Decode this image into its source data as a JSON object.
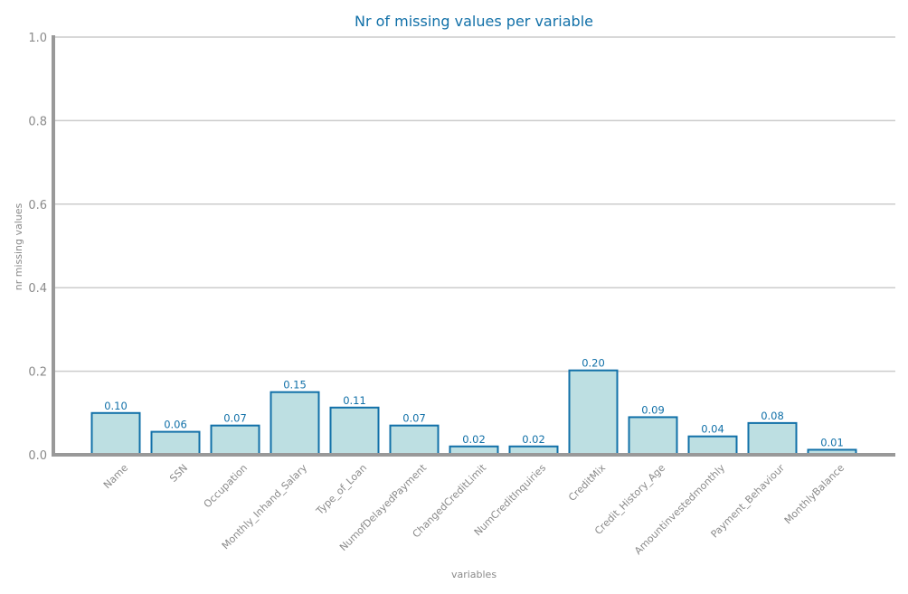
{
  "chart_data": {
    "type": "bar",
    "title": "Nr of missing values per variable",
    "xlabel": "variables",
    "ylabel": "nr missing values",
    "categories": [
      "Name",
      "SSN",
      "Occupation",
      "Monthly_Inhand_Salary",
      "Type_of_Loan",
      "NumofDelayedPayment",
      "ChangedCreditLimit",
      "NumCreditInquiries",
      "CreditMix",
      "Credit_History_Age",
      "Amountinvestedmonthly",
      "Payment_Behaviour",
      "MonthlyBalance"
    ],
    "values": [
      0.1,
      0.055,
      0.07,
      0.15,
      0.113,
      0.07,
      0.02,
      0.02,
      0.202,
      0.09,
      0.044,
      0.076,
      0.012
    ],
    "data_labels": [
      "0.10",
      "0.06",
      "0.07",
      "0.15",
      "0.11",
      "0.07",
      "0.02",
      "0.02",
      "0.20",
      "0.09",
      "0.04",
      "0.08",
      "0.01"
    ],
    "ylim": [
      0,
      1.0
    ],
    "yticks": [
      "0.0",
      "0.2",
      "0.4",
      "0.6",
      "0.8",
      "1.0"
    ],
    "grid": "horizontal",
    "colors": {
      "bar_fill": "#bddfe2",
      "bar_stroke": "#1170a8",
      "title": "#1170a8",
      "data_label": "#1170a8",
      "grid": "#cccccc",
      "axis": "#999999"
    }
  }
}
